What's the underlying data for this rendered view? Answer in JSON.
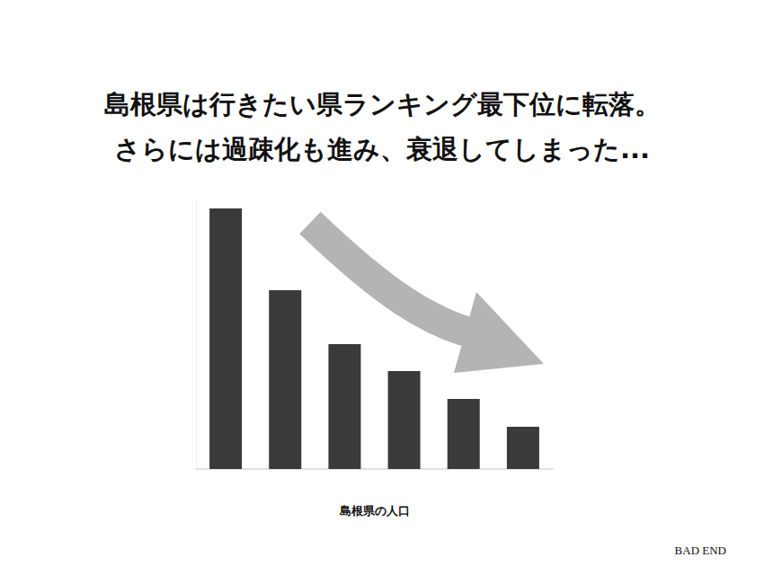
{
  "chart_data": {
    "type": "bar",
    "title": "島根県は行きたい県ランキング最下位に転落。\nさらには過疎化も進み、衰退してしまった...",
    "x_label": "島根県の人口",
    "annotation": "BAD END",
    "categories": [
      null,
      null,
      null,
      null,
      null,
      null
    ],
    "values": [
      290,
      199,
      139,
      109,
      78,
      47
    ],
    "color": "#3a3a3a",
    "ylim": [
      0,
      300
    ],
    "grid": false,
    "tick_labels": false
  }
}
